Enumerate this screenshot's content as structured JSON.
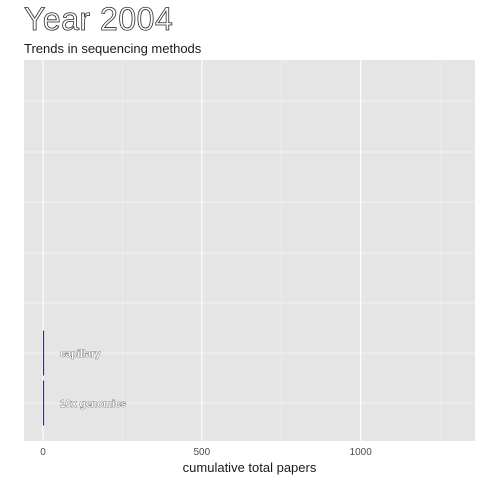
{
  "chart_data": {
    "type": "bar",
    "orientation": "horizontal",
    "title": "Year 2004",
    "subtitle": "Trends in sequencing methods",
    "xlabel": "cumulative total papers",
    "ylabel": "",
    "xlim": [
      -60,
      1360
    ],
    "xticks": [
      0,
      500,
      1000
    ],
    "xtick_labels": [
      "0",
      "500",
      "1000"
    ],
    "categories": [
      "capillary",
      "10x genomics"
    ],
    "values": [
      3,
      1
    ],
    "bar_color": "#2b1b6b",
    "panel_color": "#e5e5e5",
    "grid": true,
    "legend": "none"
  }
}
